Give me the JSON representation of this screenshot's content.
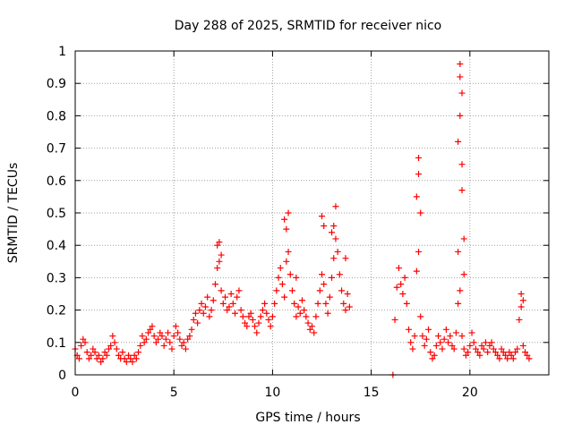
{
  "chart_data": {
    "type": "scatter",
    "title": "Day 288 of 2025, SRMTID for receiver nico",
    "xlabel": "GPS time / hours",
    "ylabel": "SRMTID / TECUs",
    "xlim": [
      0,
      24
    ],
    "ylim": [
      0,
      1
    ],
    "xticks": [
      0,
      5,
      10,
      15,
      20
    ],
    "xtick_labels": [
      "0",
      "5",
      "10",
      "15",
      "20"
    ],
    "yticks": [
      0,
      0.1,
      0.2,
      0.3,
      0.4,
      0.5,
      0.6,
      0.7,
      0.8,
      0.9,
      1
    ],
    "ytick_labels": [
      "0",
      "0.1",
      "0.2",
      "0.3",
      "0.4",
      "0.5",
      "0.6",
      "0.7",
      "0.8",
      "0.9",
      "1"
    ],
    "grid": true,
    "marker": "+",
    "color": "#ff0000",
    "series": [
      {
        "name": "SRMTID",
        "x": [
          0.0,
          0.1,
          0.2,
          0.3,
          0.4,
          0.5,
          0.6,
          0.7,
          0.8,
          0.9,
          1.0,
          1.1,
          1.2,
          1.3,
          1.4,
          1.5,
          1.6,
          1.7,
          1.8,
          1.9,
          2.0,
          2.1,
          2.2,
          2.3,
          2.4,
          2.5,
          2.6,
          2.7,
          2.8,
          2.9,
          3.0,
          3.1,
          3.2,
          3.3,
          3.4,
          3.5,
          3.6,
          3.7,
          3.8,
          3.9,
          4.0,
          4.1,
          4.2,
          4.3,
          4.4,
          4.5,
          4.6,
          4.7,
          4.8,
          4.9,
          5.0,
          5.1,
          5.2,
          5.3,
          5.4,
          5.5,
          5.6,
          5.7,
          5.8,
          5.9,
          6.0,
          6.1,
          6.2,
          6.3,
          6.4,
          6.5,
          6.6,
          6.7,
          6.8,
          6.9,
          7.0,
          7.1,
          7.2,
          7.3,
          7.4,
          7.5,
          7.6,
          7.7,
          7.8,
          7.9,
          8.0,
          8.1,
          8.2,
          8.3,
          8.4,
          8.5,
          8.6,
          8.7,
          8.8,
          8.9,
          9.0,
          9.1,
          9.2,
          9.3,
          9.4,
          9.5,
          9.6,
          9.7,
          9.8,
          9.9,
          10.0,
          10.1,
          10.2,
          10.3,
          10.4,
          10.5,
          10.6,
          10.7,
          10.8,
          10.9,
          11.0,
          11.1,
          11.2,
          11.3,
          11.4,
          11.5,
          11.6,
          11.7,
          11.8,
          11.9,
          12.0,
          12.1,
          12.2,
          12.3,
          12.4,
          12.5,
          12.6,
          12.7,
          12.8,
          12.9,
          13.0,
          13.1,
          13.2,
          13.3,
          13.4,
          13.5,
          13.6,
          13.7,
          13.8,
          13.9,
          16.2,
          16.3,
          16.4,
          16.5,
          16.6,
          16.7,
          16.8,
          16.9,
          17.0,
          17.1,
          17.2,
          17.3,
          17.4,
          17.5,
          17.6,
          17.7,
          17.8,
          17.9,
          18.0,
          18.1,
          18.2,
          18.3,
          18.4,
          18.5,
          18.6,
          18.7,
          18.8,
          18.9,
          19.0,
          19.1,
          19.2,
          19.3,
          19.4,
          19.5,
          19.6,
          19.7,
          19.8,
          19.9,
          20.0,
          20.1,
          20.2,
          20.3,
          20.4,
          20.5,
          20.6,
          20.7,
          20.8,
          20.9,
          21.0,
          21.1,
          21.2,
          21.3,
          21.4,
          21.5,
          21.6,
          21.7,
          21.8,
          21.9,
          22.0,
          22.1,
          22.2,
          22.3,
          22.4,
          22.5,
          22.6,
          22.7,
          22.8,
          22.9,
          23.0,
          7.2,
          7.3,
          7.4,
          10.6,
          10.7,
          10.8,
          11.2,
          12.5,
          12.6,
          13.0,
          13.1,
          13.2,
          13.7,
          17.3,
          17.4,
          17.4,
          17.5,
          19.4,
          19.4,
          19.5,
          19.5,
          19.5,
          19.6,
          19.6,
          19.6,
          19.7,
          19.7,
          22.6,
          22.7,
          16.1
        ],
        "y": [
          0.08,
          0.06,
          0.05,
          0.09,
          0.11,
          0.1,
          0.07,
          0.05,
          0.06,
          0.08,
          0.07,
          0.05,
          0.06,
          0.04,
          0.05,
          0.07,
          0.06,
          0.08,
          0.09,
          0.12,
          0.1,
          0.08,
          0.06,
          0.05,
          0.07,
          0.05,
          0.04,
          0.06,
          0.05,
          0.04,
          0.06,
          0.05,
          0.07,
          0.09,
          0.12,
          0.1,
          0.11,
          0.13,
          0.14,
          0.15,
          0.12,
          0.1,
          0.11,
          0.13,
          0.12,
          0.09,
          0.11,
          0.13,
          0.1,
          0.08,
          0.12,
          0.15,
          0.13,
          0.11,
          0.09,
          0.1,
          0.08,
          0.11,
          0.12,
          0.14,
          0.17,
          0.19,
          0.16,
          0.2,
          0.22,
          0.19,
          0.21,
          0.24,
          0.18,
          0.2,
          0.23,
          0.28,
          0.33,
          0.35,
          0.26,
          0.22,
          0.24,
          0.2,
          0.21,
          0.25,
          0.22,
          0.19,
          0.24,
          0.26,
          0.2,
          0.18,
          0.16,
          0.15,
          0.18,
          0.19,
          0.17,
          0.15,
          0.13,
          0.16,
          0.18,
          0.2,
          0.22,
          0.19,
          0.17,
          0.15,
          0.18,
          0.22,
          0.26,
          0.3,
          0.33,
          0.28,
          0.24,
          0.35,
          0.38,
          0.31,
          0.26,
          0.22,
          0.18,
          0.21,
          0.19,
          0.23,
          0.2,
          0.18,
          0.16,
          0.14,
          0.15,
          0.13,
          0.18,
          0.22,
          0.26,
          0.31,
          0.28,
          0.22,
          0.19,
          0.24,
          0.3,
          0.36,
          0.42,
          0.38,
          0.31,
          0.26,
          0.22,
          0.2,
          0.25,
          0.21,
          0.17,
          0.27,
          0.33,
          0.28,
          0.25,
          0.3,
          0.22,
          0.14,
          0.1,
          0.08,
          0.12,
          0.32,
          0.38,
          0.18,
          0.12,
          0.09,
          0.11,
          0.14,
          0.07,
          0.05,
          0.06,
          0.09,
          0.12,
          0.1,
          0.08,
          0.11,
          0.14,
          0.1,
          0.12,
          0.09,
          0.08,
          0.13,
          0.22,
          0.26,
          0.12,
          0.08,
          0.06,
          0.07,
          0.09,
          0.13,
          0.1,
          0.08,
          0.07,
          0.06,
          0.09,
          0.08,
          0.1,
          0.07,
          0.09,
          0.1,
          0.08,
          0.07,
          0.06,
          0.05,
          0.08,
          0.07,
          0.06,
          0.05,
          0.07,
          0.06,
          0.05,
          0.07,
          0.08,
          0.17,
          0.21,
          0.09,
          0.07,
          0.06,
          0.05,
          0.4,
          0.41,
          0.37,
          0.48,
          0.45,
          0.5,
          0.3,
          0.49,
          0.46,
          0.44,
          0.46,
          0.52,
          0.36,
          0.55,
          0.62,
          0.67,
          0.5,
          0.38,
          0.72,
          0.8,
          0.96,
          0.92,
          0.87,
          0.65,
          0.57,
          0.42,
          0.31,
          0.25,
          0.23,
          0.0
        ]
      }
    ]
  }
}
